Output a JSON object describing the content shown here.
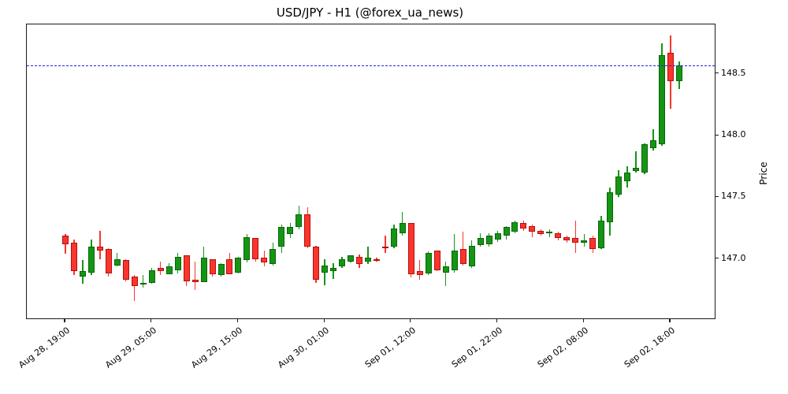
{
  "chart": {
    "title": "USD/JPY - H1 (@forex_ua_news)",
    "y_axis_label": "Price"
  },
  "chart_data": {
    "type": "candlestick",
    "title": "USD/JPY - H1 (@forex_ua_news)",
    "symbol": "USD/JPY",
    "timeframe": "H1",
    "ylabel": "Price",
    "ylabel_side": "right",
    "grid": false,
    "ylim": [
      146.52,
      148.9
    ],
    "y_ticks": [
      147.0,
      147.5,
      148.0,
      148.5
    ],
    "y_tick_labels": [
      "147.0",
      "147.5",
      "148.0",
      "148.5"
    ],
    "x_tick_labels": [
      "Aug 28, 19:00",
      "Aug 29, 05:00",
      "Aug 29, 15:00",
      "Aug 30, 01:00",
      "Sep 01, 12:00",
      "Sep 01, 22:00",
      "Sep 02, 08:00",
      "Sep 02, 18:00"
    ],
    "x_tick_candle_indices": [
      0,
      10,
      20,
      30,
      40,
      50,
      60,
      70
    ],
    "hline": {
      "price": 148.57,
      "color": "#2222ee",
      "style": "dashed"
    },
    "colors": {
      "up_fill": "#149614",
      "up_edge": "#0a640a",
      "down_fill": "#fb352b",
      "down_edge": "#b01010",
      "background": "#ffffff",
      "axis": "#1a1a1a"
    },
    "candles_format": [
      "open",
      "high",
      "low",
      "close"
    ],
    "candles": [
      [
        147.19,
        147.2,
        147.04,
        147.12
      ],
      [
        147.13,
        147.16,
        146.87,
        146.9
      ],
      [
        146.86,
        146.99,
        146.8,
        146.9
      ],
      [
        146.89,
        147.16,
        146.87,
        147.1
      ],
      [
        147.1,
        147.23,
        147.0,
        147.07
      ],
      [
        147.08,
        147.09,
        146.86,
        146.88
      ],
      [
        146.95,
        147.05,
        146.94,
        147.0
      ],
      [
        146.99,
        147.0,
        146.82,
        146.83
      ],
      [
        146.86,
        146.87,
        146.66,
        146.78
      ],
      [
        146.8,
        146.87,
        146.77,
        146.81
      ],
      [
        146.81,
        146.93,
        146.8,
        146.91
      ],
      [
        146.93,
        146.98,
        146.87,
        146.9
      ],
      [
        146.88,
        146.97,
        146.88,
        146.94
      ],
      [
        146.91,
        147.05,
        146.88,
        147.02
      ],
      [
        147.03,
        147.03,
        146.78,
        146.82
      ],
      [
        146.83,
        146.98,
        146.75,
        146.81
      ],
      [
        146.81,
        147.1,
        146.81,
        147.01
      ],
      [
        147.0,
        147.0,
        146.86,
        146.88
      ],
      [
        146.87,
        146.97,
        146.86,
        146.96
      ],
      [
        147.0,
        147.05,
        146.88,
        146.88
      ],
      [
        146.89,
        147.02,
        146.88,
        147.01
      ],
      [
        146.99,
        147.2,
        146.97,
        147.18
      ],
      [
        147.17,
        147.17,
        146.98,
        147.0
      ],
      [
        147.01,
        147.07,
        146.94,
        146.97
      ],
      [
        146.96,
        147.13,
        146.95,
        147.08
      ],
      [
        147.1,
        147.28,
        147.05,
        147.26
      ],
      [
        147.2,
        147.29,
        147.17,
        147.26
      ],
      [
        147.26,
        147.43,
        147.24,
        147.36
      ],
      [
        147.36,
        147.42,
        147.09,
        147.1
      ],
      [
        147.1,
        147.11,
        146.81,
        146.83
      ],
      [
        146.89,
        147.0,
        146.79,
        146.95
      ],
      [
        146.9,
        146.97,
        146.84,
        146.93
      ],
      [
        146.94,
        147.02,
        146.93,
        147.0
      ],
      [
        146.98,
        147.03,
        146.97,
        147.03
      ],
      [
        147.02,
        147.04,
        146.93,
        146.96
      ],
      [
        146.98,
        147.1,
        146.96,
        147.01
      ],
      [
        147.0,
        147.01,
        146.98,
        146.99
      ],
      [
        147.1,
        147.19,
        147.05,
        147.09
      ],
      [
        147.1,
        147.28,
        147.09,
        147.25
      ],
      [
        147.21,
        147.38,
        147.19,
        147.29
      ],
      [
        147.29,
        147.29,
        146.85,
        146.88
      ],
      [
        146.9,
        146.99,
        146.83,
        146.87
      ],
      [
        146.88,
        147.06,
        146.87,
        147.05
      ],
      [
        147.07,
        147.07,
        146.9,
        146.91
      ],
      [
        146.89,
        146.98,
        146.78,
        146.94
      ],
      [
        146.91,
        147.2,
        146.89,
        147.07
      ],
      [
        147.08,
        147.22,
        146.95,
        146.96
      ],
      [
        146.94,
        147.15,
        146.93,
        147.11
      ],
      [
        147.11,
        147.21,
        147.1,
        147.17
      ],
      [
        147.12,
        147.21,
        147.1,
        147.19
      ],
      [
        147.16,
        147.23,
        147.14,
        147.21
      ],
      [
        147.19,
        147.27,
        147.16,
        147.26
      ],
      [
        147.22,
        147.31,
        147.21,
        147.3
      ],
      [
        147.29,
        147.31,
        147.23,
        147.25
      ],
      [
        147.27,
        147.28,
        147.18,
        147.22
      ],
      [
        147.23,
        147.24,
        147.19,
        147.2
      ],
      [
        147.21,
        147.24,
        147.18,
        147.22
      ],
      [
        147.21,
        147.22,
        147.15,
        147.17
      ],
      [
        147.18,
        147.19,
        147.13,
        147.15
      ],
      [
        147.17,
        147.31,
        147.05,
        147.13
      ],
      [
        147.13,
        147.2,
        147.1,
        147.15
      ],
      [
        147.17,
        147.19,
        147.05,
        147.08
      ],
      [
        147.09,
        147.35,
        147.08,
        147.31
      ],
      [
        147.3,
        147.58,
        147.19,
        147.54
      ],
      [
        147.52,
        147.72,
        147.5,
        147.67
      ],
      [
        147.63,
        147.75,
        147.58,
        147.7
      ],
      [
        147.71,
        147.87,
        147.7,
        147.74
      ],
      [
        147.7,
        147.94,
        147.69,
        147.93
      ],
      [
        147.9,
        148.05,
        147.88,
        147.96
      ],
      [
        147.93,
        148.75,
        147.92,
        148.65
      ],
      [
        148.67,
        148.81,
        148.22,
        148.44
      ],
      [
        148.44,
        148.6,
        148.38,
        148.57
      ]
    ]
  }
}
